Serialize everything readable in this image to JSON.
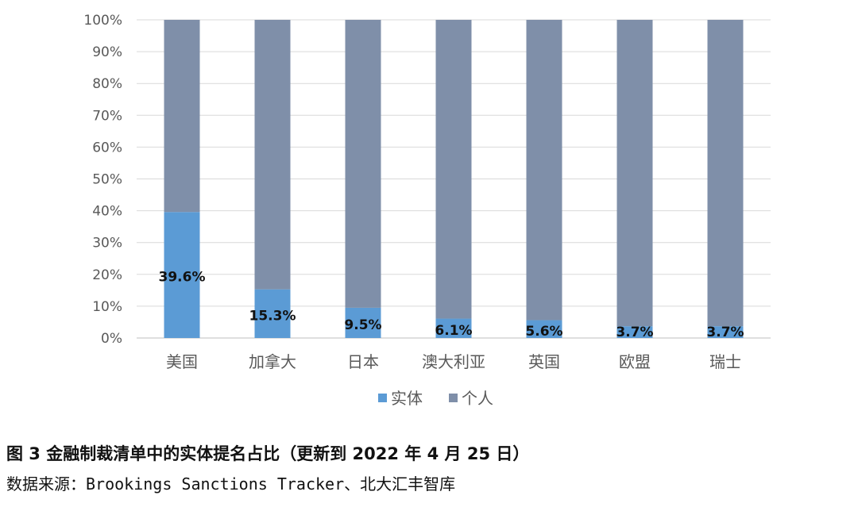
{
  "chart_data": {
    "type": "bar",
    "stacked": true,
    "normalized": true,
    "categories": [
      "美国",
      "加拿大",
      "日本",
      "澳大利亚",
      "英国",
      "欧盟",
      "瑞士"
    ],
    "series": [
      {
        "name": "实体",
        "color": "#5B9BD5",
        "values": [
          39.6,
          15.3,
          9.5,
          6.1,
          5.6,
          3.7,
          3.7
        ]
      },
      {
        "name": "个人",
        "color": "#7F8FA9",
        "values": [
          60.4,
          84.7,
          90.5,
          93.9,
          94.4,
          96.3,
          96.3
        ]
      }
    ],
    "data_labels": [
      "39.6%",
      "15.3%",
      "9.5%",
      "6.1%",
      "5.6%",
      "3.7%",
      "3.7%"
    ],
    "y_ticks": [
      "0%",
      "10%",
      "20%",
      "30%",
      "40%",
      "50%",
      "60%",
      "70%",
      "80%",
      "90%",
      "100%"
    ],
    "ylim": [
      0,
      100
    ],
    "grid": true,
    "legend_position": "bottom"
  },
  "figure": {
    "caption": "图 3 金融制裁清单中的实体提名占比（更新到 2022 年 4 月 25 日）",
    "source": "数据来源：Brookings Sanctions Tracker、北大汇丰智库"
  }
}
